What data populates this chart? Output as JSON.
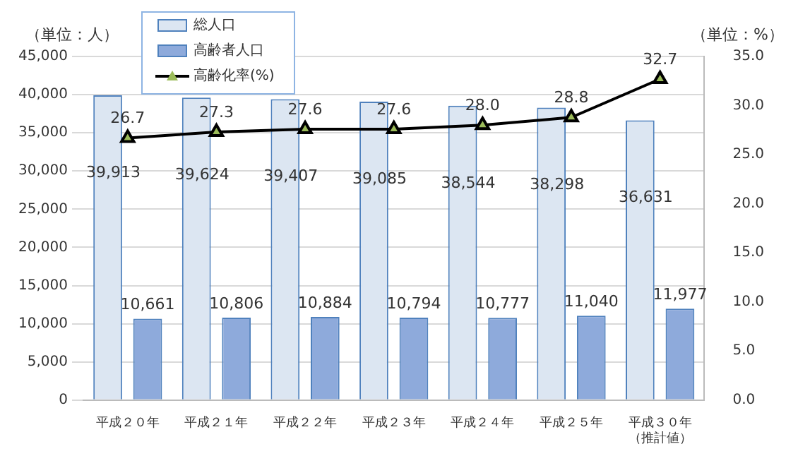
{
  "chart_data": {
    "type": "bar",
    "ylabel": "（単位：人）",
    "y2label": "（単位：%）",
    "categories": [
      "平成２０年",
      "平成２１年",
      "平成２２年",
      "平成２３年",
      "平成２４年",
      "平成２５年",
      "平成３０年（推計値）"
    ],
    "series": [
      {
        "name": "総人口",
        "color": "#dce6f2",
        "values": [
          39913,
          39624,
          39407,
          39085,
          38544,
          38298,
          36631
        ],
        "value_labels": [
          "39,913",
          "39,624",
          "39,407",
          "39,085",
          "38,544",
          "38,298",
          "36,631"
        ]
      },
      {
        "name": "高齢者人口",
        "color": "#8eaadb",
        "values": [
          10661,
          10806,
          10884,
          10794,
          10777,
          11040,
          11977
        ],
        "value_labels": [
          "10,661",
          "10,806",
          "10,884",
          "10,794",
          "10,777",
          "11,040",
          "11,977"
        ]
      },
      {
        "name": "高齢化率(%)",
        "type": "line",
        "axis": "y2",
        "color": "#000000",
        "marker": "triangle",
        "values": [
          26.7,
          27.3,
          27.6,
          27.6,
          28.0,
          28.8,
          32.7
        ],
        "value_labels": [
          "26.7",
          "27.3",
          "27.6",
          "27.6",
          "28.0",
          "28.8",
          "32.7"
        ]
      }
    ],
    "ylim": [
      0,
      45000
    ],
    "yticks": [
      {
        "value": 0,
        "label": "0"
      },
      {
        "value": 5000,
        "label": "5,000"
      },
      {
        "value": 10000,
        "label": "10,000"
      },
      {
        "value": 15000,
        "label": "15,000"
      },
      {
        "value": 20000,
        "label": "20,000"
      },
      {
        "value": 25000,
        "label": "25,000"
      },
      {
        "value": 30000,
        "label": "30,000"
      },
      {
        "value": 35000,
        "label": "35,000"
      },
      {
        "value": 40000,
        "label": "40,000"
      },
      {
        "value": 45000,
        "label": "45,000"
      }
    ],
    "y2lim": [
      0,
      35
    ],
    "y2ticks": [
      {
        "value": 0,
        "label": "0.0"
      },
      {
        "value": 5,
        "label": "5.0"
      },
      {
        "value": 10,
        "label": "10.0"
      },
      {
        "value": 15,
        "label": "15.0"
      },
      {
        "value": 20,
        "label": "20.0"
      },
      {
        "value": 25,
        "label": "25.0"
      },
      {
        "value": 30,
        "label": "30.0"
      },
      {
        "value": 35,
        "label": "35.0"
      }
    ],
    "grid": "y",
    "legend": "top left"
  }
}
